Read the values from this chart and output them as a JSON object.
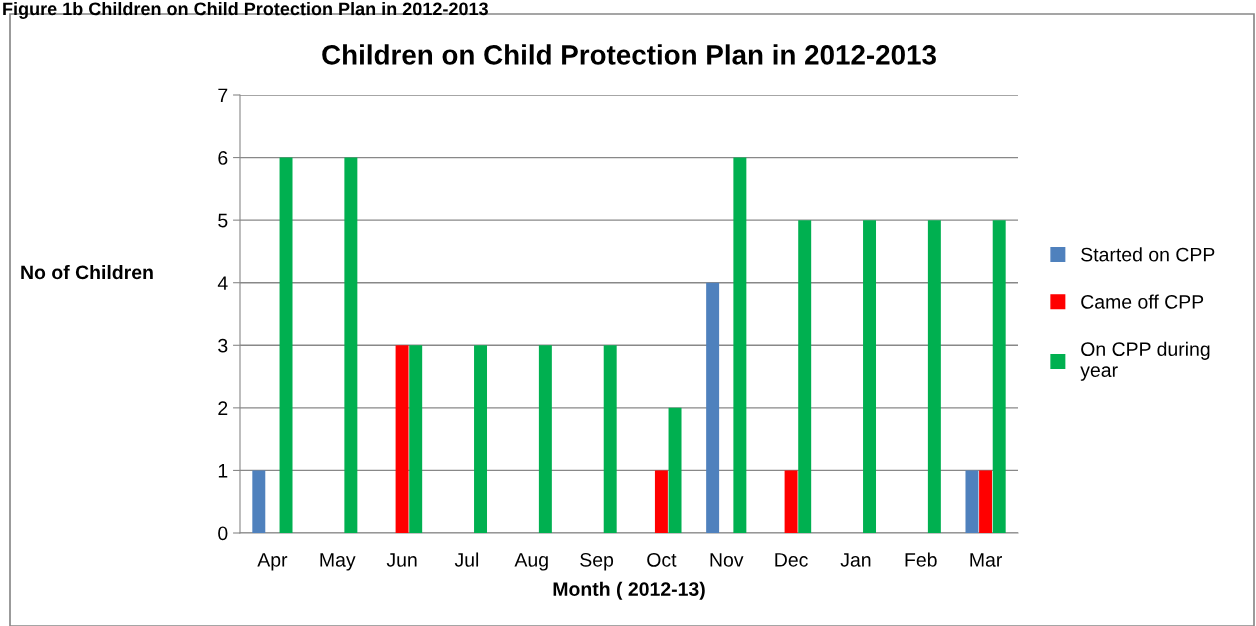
{
  "chart_data": {
    "type": "bar",
    "title": "Children on Child Protection Plan in 2012-2013",
    "xlabel": "Month ( 2012-13)",
    "ylabel": "No of Children",
    "annotations": [
      "Figure 1b Children on Child Protection Plan in 2012-2013"
    ],
    "categories": [
      "Apr",
      "May",
      "Jun",
      "Jul",
      "Aug",
      "Sep",
      "Oct",
      "Nov",
      "Dec",
      "Jan",
      "Feb",
      "Mar"
    ],
    "series": [
      {
        "name": "Started on CPP",
        "color": "#4f81bd",
        "values": [
          1,
          0,
          0,
          0,
          0,
          0,
          0,
          4,
          0,
          0,
          0,
          1
        ]
      },
      {
        "name": "Came off CPP",
        "color": "#ff0000",
        "values": [
          0,
          0,
          3,
          0,
          0,
          0,
          1,
          0,
          1,
          0,
          0,
          1
        ]
      },
      {
        "name": "On CPP during year",
        "color": "#00b050",
        "values": [
          6,
          6,
          3,
          3,
          3,
          3,
          2,
          6,
          5,
          5,
          5,
          5
        ]
      }
    ],
    "ylim": [
      0,
      7
    ],
    "yticks": [
      0,
      1,
      2,
      3,
      4,
      5,
      6,
      7
    ],
    "grid": "y",
    "legend": "right"
  }
}
